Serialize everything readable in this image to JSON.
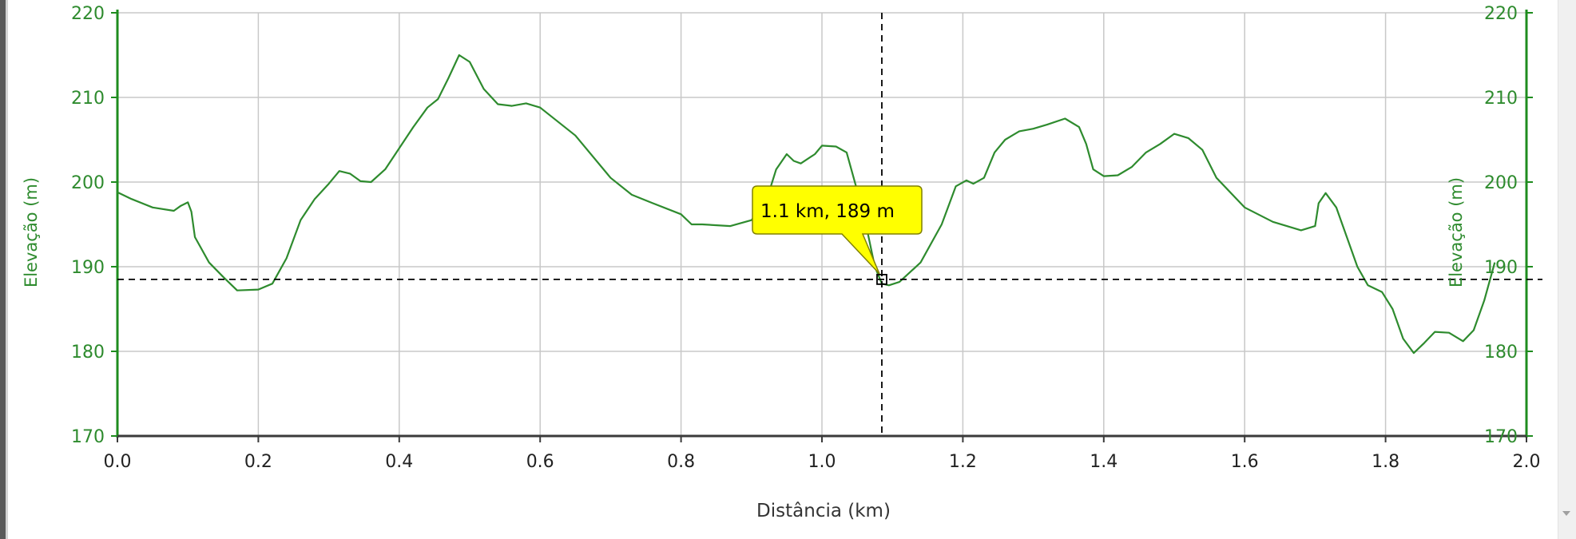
{
  "colors": {
    "line": "#2e8b2e",
    "axis": "#1e8c1e",
    "axis_text": "#2e8b2e",
    "grid": "#c8c8c8",
    "tooltip_bg": "#ffff00",
    "tooltip_border": "#808000",
    "crosshair": "#000000"
  },
  "chart_data": {
    "type": "line",
    "xlabel": "Distância (km)",
    "ylabel": "Elevação (m)",
    "ylabel_right": "Elevação (m)",
    "xlim": [
      0,
      2.0
    ],
    "ylim": [
      170,
      220
    ],
    "x_ticks": [
      "0.0",
      "0.2",
      "0.4",
      "0.6",
      "0.8",
      "1.0",
      "1.2",
      "1.4",
      "1.6",
      "1.8",
      "2.0"
    ],
    "y_ticks": [
      "170",
      "180",
      "190",
      "200",
      "210",
      "220"
    ],
    "grid": true,
    "series": [
      {
        "points": [
          [
            0.0,
            198.8
          ],
          [
            0.02,
            198.0
          ],
          [
            0.05,
            197.0
          ],
          [
            0.08,
            196.6
          ],
          [
            0.09,
            197.2
          ],
          [
            0.1,
            197.6
          ],
          [
            0.105,
            196.5
          ],
          [
            0.11,
            193.5
          ],
          [
            0.13,
            190.5
          ],
          [
            0.15,
            188.8
          ],
          [
            0.17,
            187.2
          ],
          [
            0.2,
            187.3
          ],
          [
            0.22,
            188.0
          ],
          [
            0.24,
            191.0
          ],
          [
            0.26,
            195.5
          ],
          [
            0.28,
            198.0
          ],
          [
            0.3,
            199.8
          ],
          [
            0.315,
            201.3
          ],
          [
            0.33,
            201.0
          ],
          [
            0.345,
            200.1
          ],
          [
            0.36,
            200.0
          ],
          [
            0.38,
            201.5
          ],
          [
            0.4,
            204.0
          ],
          [
            0.42,
            206.5
          ],
          [
            0.44,
            208.8
          ],
          [
            0.455,
            209.8
          ],
          [
            0.47,
            212.3
          ],
          [
            0.485,
            215.0
          ],
          [
            0.5,
            214.2
          ],
          [
            0.52,
            211.0
          ],
          [
            0.54,
            209.2
          ],
          [
            0.56,
            209.0
          ],
          [
            0.58,
            209.3
          ],
          [
            0.6,
            208.8
          ],
          [
            0.65,
            205.5
          ],
          [
            0.7,
            200.5
          ],
          [
            0.73,
            198.5
          ],
          [
            0.76,
            197.5
          ],
          [
            0.8,
            196.2
          ],
          [
            0.815,
            195.0
          ],
          [
            0.83,
            195.0
          ],
          [
            0.87,
            194.8
          ],
          [
            0.9,
            195.5
          ],
          [
            0.92,
            197.5
          ],
          [
            0.935,
            201.5
          ],
          [
            0.95,
            203.3
          ],
          [
            0.96,
            202.5
          ],
          [
            0.97,
            202.2
          ],
          [
            0.99,
            203.3
          ],
          [
            1.0,
            204.3
          ],
          [
            1.02,
            204.2
          ],
          [
            1.035,
            203.5
          ],
          [
            1.05,
            199.0
          ],
          [
            1.065,
            194.0
          ],
          [
            1.075,
            190.0
          ],
          [
            1.085,
            188.0
          ],
          [
            1.095,
            187.8
          ],
          [
            1.11,
            188.2
          ],
          [
            1.14,
            190.5
          ],
          [
            1.17,
            195.0
          ],
          [
            1.19,
            199.5
          ],
          [
            1.205,
            200.2
          ],
          [
            1.215,
            199.8
          ],
          [
            1.23,
            200.5
          ],
          [
            1.245,
            203.5
          ],
          [
            1.26,
            205.0
          ],
          [
            1.28,
            206.0
          ],
          [
            1.3,
            206.3
          ],
          [
            1.32,
            206.8
          ],
          [
            1.345,
            207.5
          ],
          [
            1.365,
            206.5
          ],
          [
            1.375,
            204.5
          ],
          [
            1.385,
            201.5
          ],
          [
            1.4,
            200.7
          ],
          [
            1.42,
            200.8
          ],
          [
            1.44,
            201.8
          ],
          [
            1.46,
            203.5
          ],
          [
            1.48,
            204.5
          ],
          [
            1.5,
            205.7
          ],
          [
            1.52,
            205.2
          ],
          [
            1.54,
            203.8
          ],
          [
            1.56,
            200.5
          ],
          [
            1.6,
            197.0
          ],
          [
            1.64,
            195.3
          ],
          [
            1.68,
            194.3
          ],
          [
            1.7,
            194.8
          ],
          [
            1.705,
            197.5
          ],
          [
            1.715,
            198.7
          ],
          [
            1.73,
            197.0
          ],
          [
            1.745,
            193.5
          ],
          [
            1.76,
            190.0
          ],
          [
            1.775,
            187.8
          ],
          [
            1.795,
            187.0
          ],
          [
            1.81,
            185.0
          ],
          [
            1.825,
            181.5
          ],
          [
            1.84,
            179.8
          ],
          [
            1.855,
            181.0
          ],
          [
            1.87,
            182.3
          ],
          [
            1.89,
            182.2
          ],
          [
            1.91,
            181.2
          ],
          [
            1.925,
            182.5
          ],
          [
            1.94,
            186.0
          ],
          [
            1.955,
            190.5
          ]
        ]
      }
    ],
    "crosshair": {
      "x": 1.085,
      "y": 188.5
    },
    "tooltip": {
      "text": "1.1 km, 189 m"
    }
  }
}
